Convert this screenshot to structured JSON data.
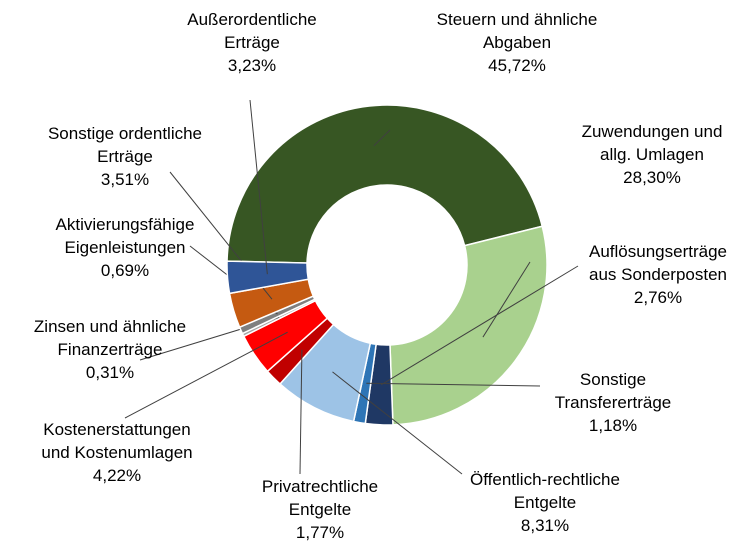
{
  "chart_data": {
    "type": "donut",
    "categories": [
      "Steuern und ähnliche Abgaben",
      "Zuwendungen und allg. Umlagen",
      "Auflösungserträge aus Sonderposten",
      "Sonstige Transfererträge",
      "Öffentlich-rechtliche Entgelte",
      "Privatrechtliche Entgelte",
      "Kostenerstattungen und Kostenumlagen",
      "Zinsen und ähnliche Finanzerträge",
      "Aktivierungsfähige Eigenleistungen",
      "Sonstige ordentliche Erträge",
      "Außerordentliche Erträge"
    ],
    "values": [
      45.72,
      28.3,
      2.76,
      1.18,
      8.31,
      1.77,
      4.22,
      0.31,
      0.69,
      3.51,
      3.23
    ],
    "value_labels": [
      "45,72%",
      "28,30%",
      "2,76%",
      "1,18%",
      "8,31%",
      "1,77%",
      "4,22%",
      "0,31%",
      "0,69%",
      "3,51%",
      "3,23%"
    ],
    "colors": [
      "#375623",
      "#a9d18e",
      "#1f3864",
      "#2e75b6",
      "#9dc3e6",
      "#c00000",
      "#ff0000",
      "#a5a5a5",
      "#7f7f7f",
      "#c55a11",
      "#2f5597"
    ]
  }
}
